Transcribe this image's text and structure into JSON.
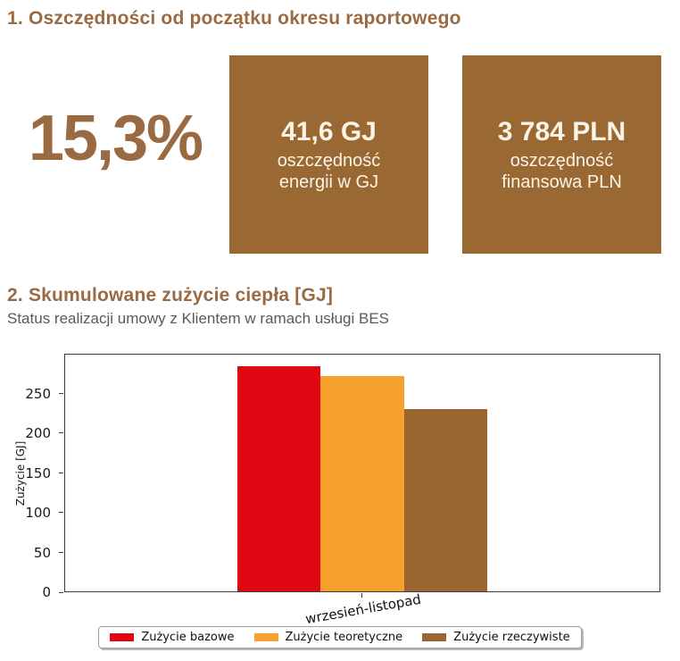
{
  "colors": {
    "brand_brown": "#9a6a42",
    "card_brown": "#9a6832",
    "series_red": "#e00713",
    "series_orange": "#f6a12d",
    "series_brown": "#996632",
    "subtitle_gray": "#595959"
  },
  "section1": {
    "heading": "1. Oszczędności od początku okresu raportowego",
    "percent": "15,3%",
    "cards": [
      {
        "value": "41,6 GJ",
        "lines": [
          "oszczędność",
          "energii w GJ"
        ]
      },
      {
        "value": "3 784 PLN",
        "lines": [
          "oszczędność",
          "finansowa PLN"
        ]
      }
    ]
  },
  "section2": {
    "heading": "2. Skumulowane zużycie ciepła [GJ]",
    "subtitle": "Status realizacji umowy z Klientem w ramach usługi BES"
  },
  "chart_data": {
    "type": "bar",
    "title": "",
    "xlabel": "",
    "ylabel": "Zużycie [GJ]",
    "categories": [
      "wrzesień-listopad"
    ],
    "series": [
      {
        "name": "Zużycie bazowe",
        "color": "#e00713",
        "values": [
          285
        ]
      },
      {
        "name": "Zużycie teoretyczne",
        "color": "#f6a12d",
        "values": [
          272.6
        ]
      },
      {
        "name": "Zużycie rzeczywiste",
        "color": "#996632",
        "values": [
          231
        ]
      }
    ],
    "ylim": [
      0,
      300
    ],
    "yticks": [
      0,
      50,
      100,
      150,
      200,
      250
    ],
    "grid": false,
    "legend_position": "bottom-center"
  }
}
